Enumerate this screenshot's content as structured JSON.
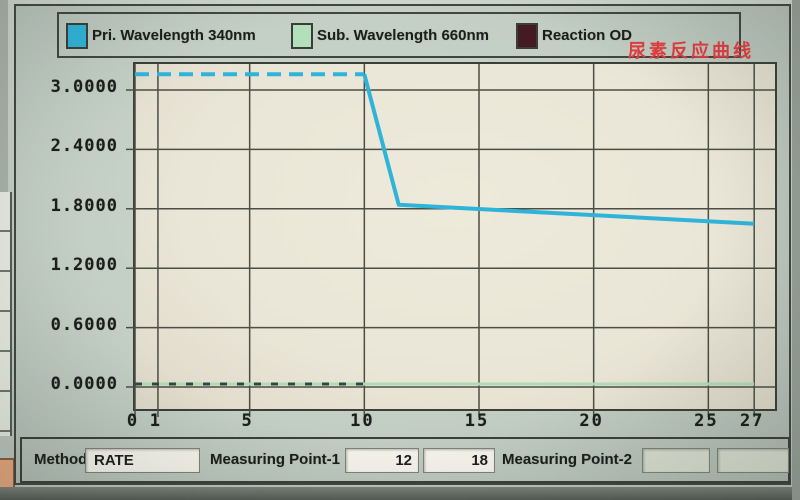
{
  "title_overlay": {
    "text": "尿素反应曲线"
  },
  "legend": {
    "items": [
      {
        "label": "Pri. Wavelength 340nm",
        "color": "#2fb4d9"
      },
      {
        "label": "Sub. Wavelength 660nm",
        "color": "#b3dfba"
      },
      {
        "label": "Reaction OD",
        "color": "#451a22"
      }
    ]
  },
  "chart_data": {
    "type": "line",
    "title": "尿素反应曲线 (Urea reaction curve)",
    "xlabel": "",
    "ylabel": "",
    "x_ticks": [
      0,
      1,
      5,
      10,
      15,
      20,
      25,
      27
    ],
    "x_range": [
      0,
      27.9
    ],
    "y_tick_labels": [
      "3.0000",
      "2.4000",
      "1.8000",
      "1.2000",
      "0.6000",
      "0.0000"
    ],
    "y_tick_values": [
      3.0,
      2.4,
      1.8,
      1.2,
      0.6,
      0.0
    ],
    "y_range": [
      -0.22,
      3.26
    ],
    "grid": true,
    "legend_position": "top",
    "series": [
      {
        "name": "Pri. Wavelength 340nm",
        "color": "#2fb4d9",
        "width": 4,
        "segments": [
          {
            "dashed": true,
            "points": [
              [
                0,
                3.16
              ],
              [
                10,
                3.16
              ]
            ]
          },
          {
            "dashed": false,
            "points": [
              [
                10,
                3.16
              ],
              [
                11.5,
                1.84
              ],
              [
                27,
                1.65
              ]
            ]
          }
        ]
      },
      {
        "name": "Sub. Wavelength 660nm",
        "color": "#aedbb6",
        "width": 3,
        "segments": [
          {
            "dashed": false,
            "points": [
              [
                0,
                0.03
              ],
              [
                27,
                0.03
              ]
            ]
          }
        ]
      },
      {
        "name": "Reaction OD",
        "color": "#2e4a40",
        "width": 3,
        "segments": [
          {
            "dashed": true,
            "points": [
              [
                0,
                0.03
              ],
              [
                10,
                0.03
              ]
            ]
          }
        ]
      }
    ]
  },
  "footer": {
    "method_label": "Method",
    "method_value": "RATE",
    "point1_label": "Measuring Point-1",
    "point1_values": [
      "12",
      "18"
    ],
    "point2_label": "Measuring Point-2",
    "point2_values": [
      "",
      ""
    ]
  }
}
